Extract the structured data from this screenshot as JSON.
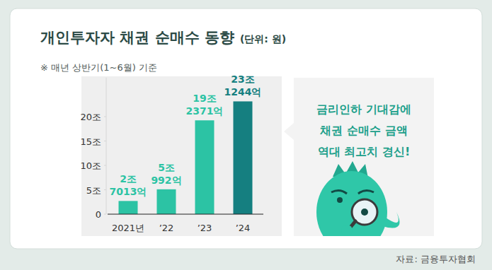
{
  "chart_data": {
    "type": "bar",
    "title": "개인투자자 채권 순매수 동향",
    "unit": "(단위: 원)",
    "subtitle": "※ 매년 상반기(1~6월) 기준",
    "categories": [
      "2021년",
      "’22",
      "’23",
      "’24"
    ],
    "values": [
      2.7013,
      5.0992,
      19.2371,
      23.1244
    ],
    "value_labels": [
      "2조\n7013억",
      "5조\n992억",
      "19조\n2371억",
      "23조\n1244억"
    ],
    "colors": [
      "#2cc3a4",
      "#2cc3a4",
      "#2cc3a4",
      "#157f80"
    ],
    "data_labels": true,
    "ylim": [
      0,
      28
    ],
    "yticks": [
      0,
      {
        "value": 5,
        "label": "5조"
      },
      {
        "value": 10,
        "label": "10조"
      },
      {
        "value": 15,
        "label": "15조"
      },
      {
        "value": 20,
        "label": "20조"
      }
    ],
    "grid": false,
    "annotation": [
      "금리인하 기대감에",
      "채권 순매수 금액",
      "역대 최고치 경신!"
    ],
    "source": "자료: 금융투자협회"
  }
}
